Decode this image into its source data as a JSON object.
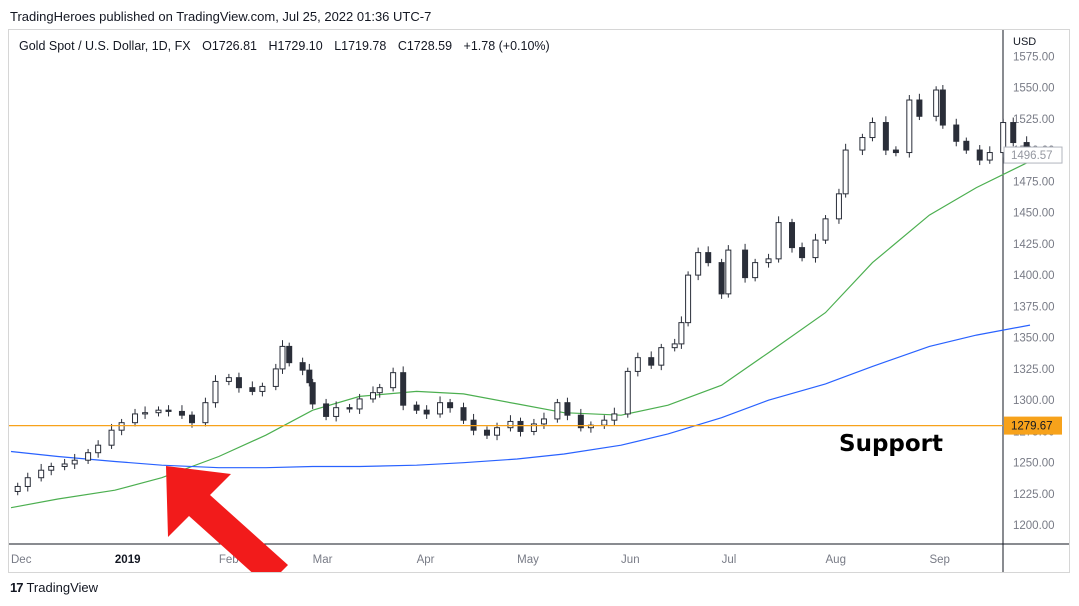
{
  "header": {
    "publish_line": "TradingHeroes published on TradingView.com, Jul 25, 2022 01:36 UTC-7"
  },
  "legend": {
    "symbol": "Gold Spot / U.S. Dollar, 1D, FX",
    "open": "O1726.81",
    "high": "H1729.10",
    "low": "L1719.78",
    "close": "C1728.59",
    "change": "+1.78 (+0.10%)"
  },
  "footer": {
    "brand": "TradingView",
    "brand_mark": "17"
  },
  "colors": {
    "candle": "#2a2e39",
    "ma_short": "#4caf50",
    "ma_long": "#2962ff",
    "support": "#f7a21b",
    "arrow": "#f21b1b",
    "axis_text": "#787b86"
  },
  "chart_data": {
    "type": "candlestick",
    "ylabel": "USD",
    "ylim": [
      1185,
      1580
    ],
    "y_ticks": [
      1200,
      1225,
      1250,
      1275,
      1300,
      1325,
      1350,
      1375,
      1400,
      1425,
      1450,
      1475,
      1500,
      1525,
      1550,
      1575
    ],
    "x_ticks": [
      {
        "label": "Dec",
        "date": "2018-12-01",
        "bold": false
      },
      {
        "label": "2019",
        "date": "2019-01-01",
        "bold": true
      },
      {
        "label": "Feb",
        "date": "2019-02-01",
        "bold": false
      },
      {
        "label": "Mar",
        "date": "2019-03-01",
        "bold": false
      },
      {
        "label": "Apr",
        "date": "2019-04-01",
        "bold": false
      },
      {
        "label": "May",
        "date": "2019-05-01",
        "bold": false
      },
      {
        "label": "Jun",
        "date": "2019-06-01",
        "bold": false
      },
      {
        "label": "Jul",
        "date": "2019-07-01",
        "bold": false
      },
      {
        "label": "Aug",
        "date": "2019-08-01",
        "bold": false
      },
      {
        "label": "Sep",
        "date": "2019-09-01",
        "bold": false
      }
    ],
    "xlim": [
      "2018-12-01",
      "2019-10-01"
    ],
    "current_price_label": "1496.57",
    "support_level": 1279.67,
    "support_label": "1279.67",
    "annotation": "Support",
    "closes": [
      [
        "2018-12-03",
        1231
      ],
      [
        "2018-12-06",
        1238
      ],
      [
        "2018-12-10",
        1244
      ],
      [
        "2018-12-13",
        1247
      ],
      [
        "2018-12-17",
        1249
      ],
      [
        "2018-12-20",
        1252
      ],
      [
        "2018-12-24",
        1258
      ],
      [
        "2018-12-27",
        1264
      ],
      [
        "2018-12-31",
        1276
      ],
      [
        "2019-01-03",
        1282
      ],
      [
        "2019-01-07",
        1289
      ],
      [
        "2019-01-10",
        1290
      ],
      [
        "2019-01-14",
        1292
      ],
      [
        "2019-01-17",
        1291
      ],
      [
        "2019-01-21",
        1288
      ],
      [
        "2019-01-24",
        1282
      ],
      [
        "2019-01-28",
        1298
      ],
      [
        "2019-01-31",
        1315
      ],
      [
        "2019-02-04",
        1318
      ],
      [
        "2019-02-07",
        1310
      ],
      [
        "2019-02-11",
        1307
      ],
      [
        "2019-02-14",
        1311
      ],
      [
        "2019-02-18",
        1325
      ],
      [
        "2019-02-20",
        1343
      ],
      [
        "2019-02-22",
        1330
      ],
      [
        "2019-02-26",
        1324
      ],
      [
        "2019-02-28",
        1314
      ],
      [
        "2019-03-01",
        1297
      ],
      [
        "2019-03-05",
        1287
      ],
      [
        "2019-03-08",
        1294
      ],
      [
        "2019-03-12",
        1293
      ],
      [
        "2019-03-15",
        1301
      ],
      [
        "2019-03-19",
        1306
      ],
      [
        "2019-03-21",
        1310
      ],
      [
        "2019-03-25",
        1322
      ],
      [
        "2019-03-28",
        1296
      ],
      [
        "2019-04-01",
        1292
      ],
      [
        "2019-04-04",
        1289
      ],
      [
        "2019-04-08",
        1298
      ],
      [
        "2019-04-11",
        1294
      ],
      [
        "2019-04-15",
        1284
      ],
      [
        "2019-04-18",
        1276
      ],
      [
        "2019-04-22",
        1272
      ],
      [
        "2019-04-25",
        1278
      ],
      [
        "2019-04-29",
        1283
      ],
      [
        "2019-05-02",
        1275
      ],
      [
        "2019-05-06",
        1281
      ],
      [
        "2019-05-09",
        1285
      ],
      [
        "2019-05-13",
        1298
      ],
      [
        "2019-05-16",
        1288
      ],
      [
        "2019-05-20",
        1278
      ],
      [
        "2019-05-23",
        1280
      ],
      [
        "2019-05-27",
        1284
      ],
      [
        "2019-05-30",
        1289
      ],
      [
        "2019-06-03",
        1323
      ],
      [
        "2019-06-06",
        1334
      ],
      [
        "2019-06-10",
        1328
      ],
      [
        "2019-06-13",
        1342
      ],
      [
        "2019-06-17",
        1345
      ],
      [
        "2019-06-19",
        1362
      ],
      [
        "2019-06-21",
        1400
      ],
      [
        "2019-06-24",
        1418
      ],
      [
        "2019-06-27",
        1410
      ],
      [
        "2019-07-01",
        1385
      ],
      [
        "2019-07-03",
        1420
      ],
      [
        "2019-07-08",
        1398
      ],
      [
        "2019-07-11",
        1410
      ],
      [
        "2019-07-15",
        1413
      ],
      [
        "2019-07-18",
        1442
      ],
      [
        "2019-07-22",
        1422
      ],
      [
        "2019-07-25",
        1414
      ],
      [
        "2019-07-29",
        1428
      ],
      [
        "2019-08-01",
        1445
      ],
      [
        "2019-08-05",
        1465
      ],
      [
        "2019-08-07",
        1500
      ],
      [
        "2019-08-12",
        1510
      ],
      [
        "2019-08-15",
        1522
      ],
      [
        "2019-08-19",
        1500
      ],
      [
        "2019-08-22",
        1498
      ],
      [
        "2019-08-26",
        1540
      ],
      [
        "2019-08-29",
        1527
      ],
      [
        "2019-09-03",
        1548
      ],
      [
        "2019-09-05",
        1520
      ],
      [
        "2019-09-09",
        1507
      ],
      [
        "2019-09-12",
        1500
      ],
      [
        "2019-09-16",
        1492
      ],
      [
        "2019-09-19",
        1498
      ],
      [
        "2019-09-23",
        1522
      ],
      [
        "2019-09-26",
        1506
      ],
      [
        "2019-09-30",
        1496
      ]
    ],
    "series": [
      {
        "role": "short moving average",
        "points": [
          [
            "2018-12-01",
            1214
          ],
          [
            "2018-12-15",
            1221
          ],
          [
            "2019-01-01",
            1228
          ],
          [
            "2019-01-15",
            1238
          ],
          [
            "2019-02-01",
            1255
          ],
          [
            "2019-02-15",
            1272
          ],
          [
            "2019-03-01",
            1292
          ],
          [
            "2019-03-15",
            1303
          ],
          [
            "2019-04-01",
            1307
          ],
          [
            "2019-04-15",
            1305
          ],
          [
            "2019-05-01",
            1297
          ],
          [
            "2019-05-15",
            1290
          ],
          [
            "2019-06-01",
            1288
          ],
          [
            "2019-06-15",
            1296
          ],
          [
            "2019-07-01",
            1312
          ],
          [
            "2019-07-15",
            1338
          ],
          [
            "2019-08-01",
            1370
          ],
          [
            "2019-08-15",
            1410
          ],
          [
            "2019-09-01",
            1448
          ],
          [
            "2019-09-15",
            1470
          ],
          [
            "2019-10-01",
            1491
          ]
        ]
      },
      {
        "role": "long moving average",
        "points": [
          [
            "2018-12-01",
            1259
          ],
          [
            "2018-12-15",
            1255
          ],
          [
            "2019-01-01",
            1251
          ],
          [
            "2019-01-15",
            1248
          ],
          [
            "2019-02-01",
            1246
          ],
          [
            "2019-02-15",
            1246
          ],
          [
            "2019-03-01",
            1247
          ],
          [
            "2019-03-15",
            1247
          ],
          [
            "2019-04-01",
            1248
          ],
          [
            "2019-04-15",
            1250
          ],
          [
            "2019-05-01",
            1253
          ],
          [
            "2019-05-15",
            1257
          ],
          [
            "2019-06-01",
            1264
          ],
          [
            "2019-06-15",
            1273
          ],
          [
            "2019-07-01",
            1286
          ],
          [
            "2019-07-15",
            1300
          ],
          [
            "2019-08-01",
            1313
          ],
          [
            "2019-08-15",
            1327
          ],
          [
            "2019-09-01",
            1343
          ],
          [
            "2019-09-15",
            1352
          ],
          [
            "2019-10-01",
            1360
          ]
        ]
      }
    ]
  }
}
